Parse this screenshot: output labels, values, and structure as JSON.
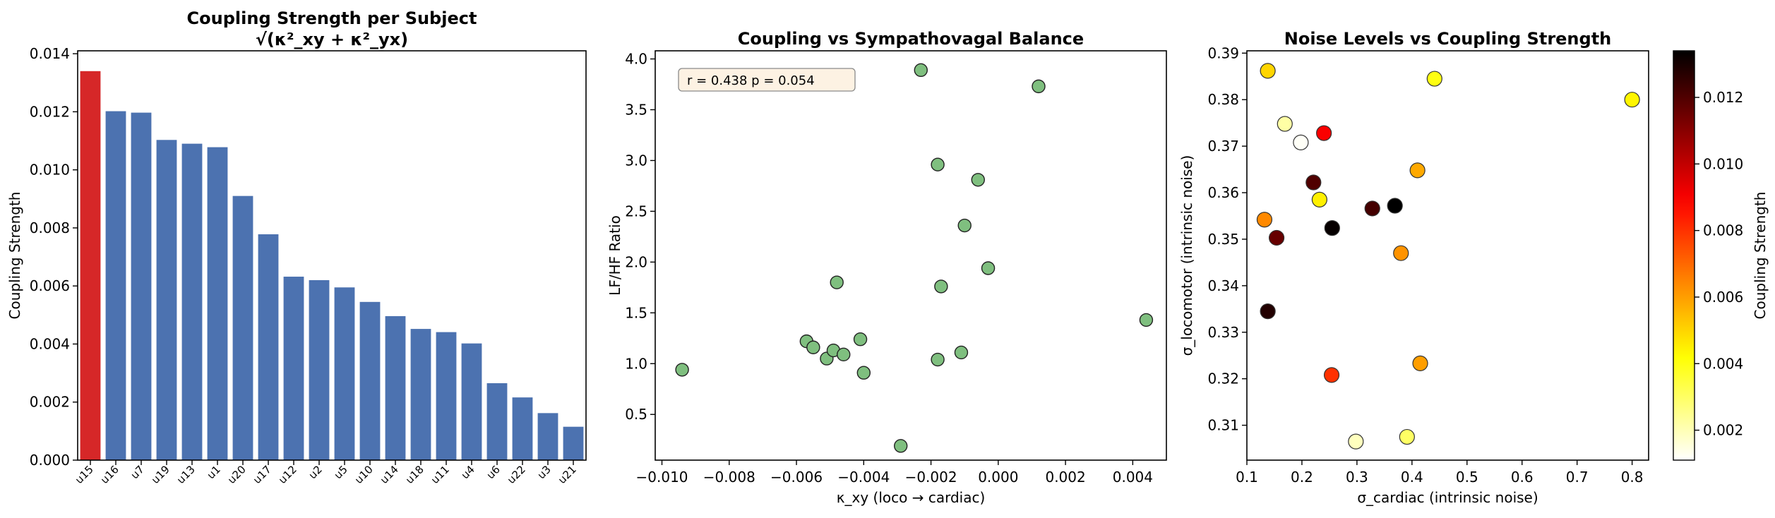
{
  "chart_data": [
    {
      "type": "bar",
      "title": "Coupling Strength per Subject",
      "subtitle": "√(κ²_xy + κ²_yx)",
      "xlabel": "",
      "ylabel": "Coupling Strength",
      "ylim": [
        0,
        0.0141
      ],
      "yticks": [
        "0.000",
        "0.002",
        "0.004",
        "0.006",
        "0.008",
        "0.010",
        "0.012",
        "0.014"
      ],
      "categories": [
        "u15",
        "u16",
        "u7",
        "u19",
        "u13",
        "u1",
        "u20",
        "u17",
        "u12",
        "u2",
        "u5",
        "u10",
        "u14",
        "u18",
        "u11",
        "u4",
        "u6",
        "u22",
        "u3",
        "u21"
      ],
      "values": [
        0.0134,
        0.01202,
        0.01197,
        0.01103,
        0.0109,
        0.01078,
        0.0091,
        0.00778,
        0.00632,
        0.0062,
        0.00595,
        0.00545,
        0.00496,
        0.00452,
        0.00441,
        0.00402,
        0.00265,
        0.00216,
        0.00162,
        0.00115
      ],
      "colors": {
        "highlight": "#d62728",
        "default": "#4c72b0"
      },
      "grid": false
    },
    {
      "type": "scatter",
      "title": "Coupling vs Sympathovagal Balance",
      "xlabel": "κ_xy  (loco → cardiac)",
      "ylabel": "LF/HF Ratio",
      "xlim": [
        -0.0102,
        0.005
      ],
      "ylim": [
        0.05,
        4.08
      ],
      "xticks": [
        "−0.010",
        "−0.008",
        "−0.006",
        "−0.004",
        "−0.002",
        "0.000",
        "0.002",
        "0.004"
      ],
      "yticks": [
        "0.5",
        "1.0",
        "1.5",
        "2.0",
        "2.5",
        "3.0",
        "3.5",
        "4.0"
      ],
      "annotation": "r = 0.438  p = 0.054",
      "marker_color": "#7fbf7f",
      "points": [
        [
          -0.0094,
          0.94
        ],
        [
          -0.0057,
          1.22
        ],
        [
          -0.0055,
          1.16
        ],
        [
          -0.0051,
          1.05
        ],
        [
          -0.0049,
          1.13
        ],
        [
          -0.0048,
          1.8
        ],
        [
          -0.0046,
          1.09
        ],
        [
          -0.0041,
          1.24
        ],
        [
          -0.004,
          0.91
        ],
        [
          -0.0029,
          0.19
        ],
        [
          -0.0023,
          3.89
        ],
        [
          -0.0018,
          2.96
        ],
        [
          -0.0018,
          1.04
        ],
        [
          -0.0017,
          1.76
        ],
        [
          -0.0011,
          1.11
        ],
        [
          -0.001,
          2.36
        ],
        [
          -0.0006,
          2.81
        ],
        [
          -0.0003,
          1.94
        ],
        [
          0.0012,
          3.73
        ],
        [
          0.0044,
          1.43
        ]
      ],
      "grid": false
    },
    {
      "type": "scatter",
      "title": "Noise Levels vs Coupling Strength",
      "xlabel": "σ_cardiac (intrinsic noise)",
      "ylabel": "σ_locomotor (intrinsic noise)",
      "xlim": [
        0.1,
        0.83
      ],
      "ylim": [
        0.3025,
        0.3905
      ],
      "xticks": [
        "0.1",
        "0.2",
        "0.3",
        "0.4",
        "0.5",
        "0.6",
        "0.7",
        "0.8"
      ],
      "yticks": [
        "0.31",
        "0.32",
        "0.33",
        "0.34",
        "0.35",
        "0.36",
        "0.37",
        "0.38",
        "0.39"
      ],
      "colorbar": {
        "label": "Coupling Strength",
        "colormap": "hot_r",
        "range": [
          0.0011,
          0.0134
        ],
        "ticks": [
          "0.002",
          "0.004",
          "0.006",
          "0.008",
          "0.010",
          "0.012"
        ]
      },
      "points": [
        [
          0.138,
          0.3862,
          0.005
        ],
        [
          0.169,
          0.3748,
          0.0022
        ],
        [
          0.198,
          0.3708,
          0.0012
        ],
        [
          0.24,
          0.3728,
          0.009
        ],
        [
          0.221,
          0.3622,
          0.012
        ],
        [
          0.232,
          0.3585,
          0.0045
        ],
        [
          0.255,
          0.3524,
          0.0133
        ],
        [
          0.328,
          0.3566,
          0.0122
        ],
        [
          0.369,
          0.3572,
          0.0134
        ],
        [
          0.132,
          0.3542,
          0.0064
        ],
        [
          0.154,
          0.3503,
          0.0116
        ],
        [
          0.138,
          0.3345,
          0.0128
        ],
        [
          0.254,
          0.3208,
          0.008
        ],
        [
          0.298,
          0.3065,
          0.0019
        ],
        [
          0.391,
          0.3075,
          0.003
        ],
        [
          0.41,
          0.3648,
          0.0058
        ],
        [
          0.441,
          0.3845,
          0.004
        ],
        [
          0.38,
          0.347,
          0.0062
        ],
        [
          0.415,
          0.3233,
          0.006
        ],
        [
          0.8,
          0.38,
          0.0044
        ]
      ],
      "grid": false
    }
  ]
}
